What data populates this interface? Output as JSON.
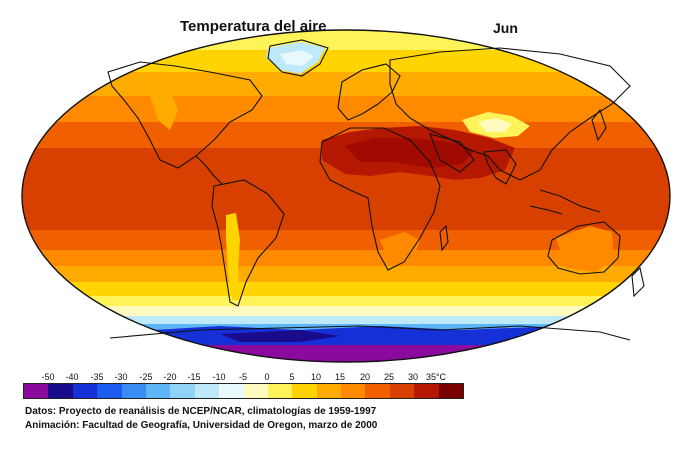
{
  "title": "Temperatura del aire",
  "month": "Jun",
  "legend": {
    "labels": [
      "-50",
      "-40",
      "-35",
      "-30",
      "-25",
      "-20",
      "-15",
      "-10",
      "-5",
      "0",
      "5",
      "10",
      "15",
      "20",
      "25",
      "30",
      "35°C"
    ],
    "colors": [
      "#8b0a9e",
      "#1a0a8c",
      "#1530d6",
      "#1c5cf0",
      "#3a8cf5",
      "#5fb6f7",
      "#8fd4f7",
      "#bde9f9",
      "#e8f8fb",
      "#fffac0",
      "#fff35a",
      "#ffd400",
      "#ffab00",
      "#ff8a00",
      "#f06000",
      "#d84000",
      "#b41800",
      "#7a0000"
    ]
  },
  "credits": {
    "line1": "Datos: Proyecto de reanálisis de NCEP/NCAR, climatologías de 1959-1997",
    "line2": "Animación: Facultad de Geografía, Universidad de Oregon, marzo de 2000"
  }
}
